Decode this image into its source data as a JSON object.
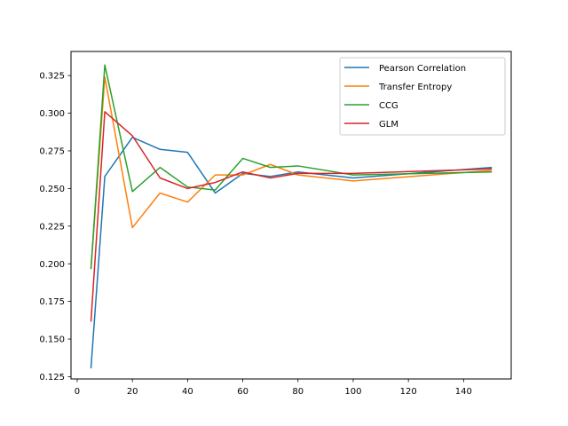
{
  "chart_data": {
    "type": "line",
    "title": "",
    "xlabel": "",
    "ylabel": "",
    "xlim": [
      -2.25,
      157.25
    ],
    "ylim": [
      0.1235,
      0.341
    ],
    "grid": false,
    "legend_position": "top-right",
    "x_ticks": [
      0,
      20,
      40,
      60,
      80,
      100,
      120,
      140
    ],
    "x_tick_labels": [
      "0",
      "20",
      "40",
      "60",
      "80",
      "100",
      "120",
      "140"
    ],
    "y_ticks": [
      0.125,
      0.15,
      0.175,
      0.2,
      0.225,
      0.25,
      0.275,
      0.3,
      0.325
    ],
    "y_tick_labels": [
      "0.125",
      "0.150",
      "0.175",
      "0.200",
      "0.225",
      "0.250",
      "0.275",
      "0.300",
      "0.325"
    ],
    "x": [
      5,
      10,
      20,
      30,
      40,
      50,
      60,
      70,
      80,
      100,
      150
    ],
    "series": [
      {
        "name": "Pearson Correlation",
        "color": "#1f77b4",
        "values": [
          0.131,
          0.258,
          0.284,
          0.276,
          0.274,
          0.247,
          0.26,
          0.258,
          0.261,
          0.257,
          0.264
        ]
      },
      {
        "name": "Transfer Entropy",
        "color": "#ff7f0e",
        "values": [
          0.197,
          0.324,
          0.224,
          0.247,
          0.241,
          0.259,
          0.259,
          0.266,
          0.259,
          0.255,
          0.262
        ]
      },
      {
        "name": "CCG",
        "color": "#2ca02c",
        "values": [
          0.197,
          0.332,
          0.248,
          0.264,
          0.251,
          0.249,
          0.27,
          0.264,
          0.265,
          0.259,
          0.261
        ]
      },
      {
        "name": "GLM",
        "color": "#d62728",
        "values": [
          0.162,
          0.301,
          0.285,
          0.257,
          0.25,
          0.254,
          0.261,
          0.257,
          0.26,
          0.26,
          0.263
        ]
      }
    ]
  }
}
